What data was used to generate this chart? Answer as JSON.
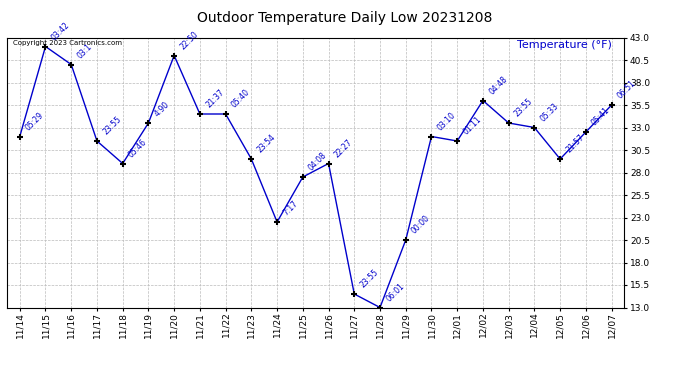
{
  "title": "Outdoor Temperature Daily Low 20231208",
  "ylabel": "Temperature (°F)",
  "copyright_text": "Copyright 2023 Cartronics.com",
  "background_color": "#ffffff",
  "line_color": "#0000cc",
  "text_color": "#0000cc",
  "grid_color": "#bbbbbb",
  "ylim": [
    13.0,
    43.0
  ],
  "yticks": [
    13.0,
    15.5,
    18.0,
    20.5,
    23.0,
    25.5,
    28.0,
    30.5,
    33.0,
    35.5,
    38.0,
    40.5,
    43.0
  ],
  "dates": [
    "11/14",
    "11/15",
    "11/16",
    "11/17",
    "11/18",
    "11/19",
    "11/20",
    "11/21",
    "11/22",
    "11/23",
    "11/24",
    "11/25",
    "11/26",
    "11/27",
    "11/28",
    "11/29",
    "11/30",
    "12/01",
    "12/02",
    "12/03",
    "12/04",
    "12/05",
    "12/06",
    "12/07"
  ],
  "values": [
    32.0,
    42.0,
    40.0,
    31.5,
    29.0,
    33.5,
    41.0,
    34.5,
    34.5,
    29.5,
    22.5,
    27.5,
    29.0,
    14.5,
    13.0,
    20.5,
    32.0,
    31.5,
    36.0,
    33.5,
    33.0,
    29.5,
    32.5,
    35.5
  ],
  "labels": [
    "05:29",
    "03:42",
    "03:1",
    "23:55",
    "05:46",
    "4:90",
    "22:50",
    "21:37",
    "05:40",
    "23:54",
    "7:17",
    "04:08",
    "22:27",
    "23:55",
    "06:01",
    "00:00",
    "03:10",
    "01:11",
    "04:48",
    "23:55",
    "05:33",
    "21:57",
    "05:41",
    "06:51"
  ]
}
